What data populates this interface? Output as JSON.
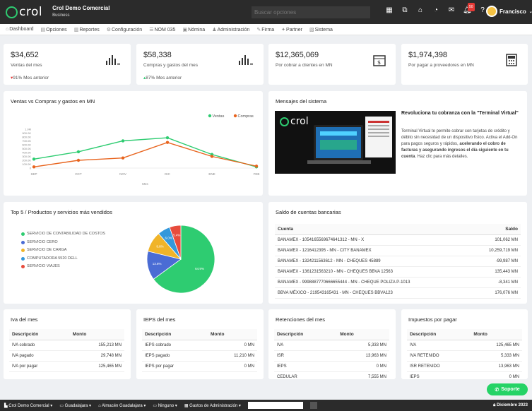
{
  "header": {
    "logo_text": "crol",
    "company_name": "Crol Demo Comercial",
    "company_plan": "Business",
    "search_placeholder": "Buscar opciones",
    "notifications_badge": "50",
    "user_name": "Francisco"
  },
  "menu": [
    {
      "icon": "home-icon",
      "label": "Dashboard"
    },
    {
      "icon": "options-icon",
      "label": "Opciones"
    },
    {
      "icon": "reports-icon",
      "label": "Reportes"
    },
    {
      "icon": "gear-icon",
      "label": "Configuración"
    },
    {
      "icon": "list-icon",
      "label": "NOM 035"
    },
    {
      "icon": "payroll-icon",
      "label": "Nómina"
    },
    {
      "icon": "admin-icon",
      "label": "Administración"
    },
    {
      "icon": "sign-icon",
      "label": "Firma"
    },
    {
      "icon": "partner-icon",
      "label": "Partner"
    },
    {
      "icon": "system-icon",
      "label": "Sistema"
    }
  ],
  "kpis": [
    {
      "value": "$34,652",
      "label": "Ventas del mes",
      "change": "91% Mes anterior",
      "direction": "down",
      "icon": "bar-chart-icon"
    },
    {
      "value": "$58,338",
      "label": "Compras y gastos del mes",
      "change": "87% Mes anterior",
      "direction": "up",
      "icon": "bar-chart-icon"
    },
    {
      "value": "$12,365,069",
      "label": "Por cobrar a clientes en MN",
      "change": "",
      "direction": "",
      "icon": "calendar-money-icon"
    },
    {
      "value": "$1,974,398",
      "label": "Por pagar a proveedores en MN",
      "change": "",
      "direction": "",
      "icon": "calculator-icon"
    }
  ],
  "line_chart_title": "Ventas vs Compras y gastos en MN",
  "chart_data": {
    "type": "line",
    "categories": [
      "SEP",
      "OCT",
      "NOV",
      "DIC",
      "ENE",
      "FEB"
    ],
    "xlabel": "Mes",
    "ylabel": "",
    "ylim": [
      0,
      1000000
    ],
    "yticks": [
      "1.0M",
      "900.0K",
      "800.0K",
      "700.0K",
      "600.0K",
      "500.0K",
      "400.0K",
      "300.0K",
      "200.0K",
      "100.0K",
      "0"
    ],
    "legend_position": "top-right",
    "series": [
      {
        "name": "Ventas",
        "color": "#2ecc71",
        "values": [
          230000,
          420000,
          700000,
          780000,
          350000,
          30000
        ]
      },
      {
        "name": "Compras",
        "color": "#e8641e",
        "values": [
          30000,
          200000,
          260000,
          660000,
          300000,
          50000
        ]
      }
    ]
  },
  "messages": {
    "title": "Mensajes del sistema",
    "headline": "Revoluciona tu cobranza con la \"Terminal Virtual\"",
    "body_plain": "Terminal Virtual te permite cobrar con tarjetas de crédito y débito sin necesidad de un dispositivo físico. Activa el Add-On para pagos seguros y rápidos, ",
    "body_bold": "acelerando el cobro de facturas y asegurando ingresos el día siguiente en tu cuenta",
    "body_end": ". Haz clic para más detalles."
  },
  "pie": {
    "title": "Top 5 / Productos y servicios más vendidos",
    "slices": [
      {
        "label": "SERVICIO DE CONTABILIDAD DE COSTOS",
        "value": 64.9,
        "text": "64.9%",
        "color": "#2ecc71"
      },
      {
        "label": "SERVICIO CERO",
        "value": 13.8,
        "text": "13.8%",
        "color": "#4a6cd4"
      },
      {
        "label": "SERVICIO DE CARGA",
        "value": 9.8,
        "text": "9.8%",
        "color": "#f0b429"
      },
      {
        "label": "COMPUTADORA 5520 DELL",
        "value": 6.0,
        "text": "6.0%",
        "color": "#3498db"
      },
      {
        "label": "SERVICIO VIAJES",
        "value": 5.4,
        "text": "5.4%",
        "color": "#e74c3c"
      }
    ]
  },
  "bank": {
    "title": "Saldo de cuentas bancarias",
    "col_account": "Cuenta",
    "col_balance": "Saldo",
    "rows": [
      {
        "account": "BANAMEX - 1054165569674641312 - MN - X",
        "balance": "101,062 MN"
      },
      {
        "account": "BANAMEX - 1216412395 - MN - CITY BANAMEX",
        "balance": "10,259,719 MN"
      },
      {
        "account": "BANAMEX - 1324211563612 - MN - CHEQUES 45889",
        "balance": "-99,987 MN"
      },
      {
        "account": "BANAMEX - 1361231563210 - MN - CHEQUES BBVA 12563",
        "balance": "135,443 MN"
      },
      {
        "account": "BANAMEX - 9998887770666655444 - MN - CHEQUE POLIZA P-1013",
        "balance": "-8,341 MN"
      },
      {
        "account": "BBVA MÉXICO - 219543165431 - MN - CHEQUES BBVA123",
        "balance": "176,076 MN"
      }
    ]
  },
  "tax_tables": [
    {
      "title": "Iva del mes",
      "col1": "Descripción",
      "col2": "Monto",
      "rows": [
        {
          "d": "IVA cobrado",
          "m": "155,213 MN"
        },
        {
          "d": "IVA pagado",
          "m": "29,748 MN"
        },
        {
          "d": "IVA por pagar",
          "m": "125,465 MN"
        }
      ]
    },
    {
      "title": "IEPS del mes",
      "col1": "Descripción",
      "col2": "Monto",
      "rows": [
        {
          "d": "IEPS cobrado",
          "m": "0 MN"
        },
        {
          "d": "IEPS pagado",
          "m": "11,210 MN"
        },
        {
          "d": "IEPS por pagar",
          "m": "0 MN"
        }
      ]
    },
    {
      "title": "Retenciones del mes",
      "col1": "Descripción",
      "col2": "Monto",
      "rows": [
        {
          "d": "IVA",
          "m": "5,333 MN"
        },
        {
          "d": "ISR",
          "m": "13,963 MN"
        },
        {
          "d": "IEPS",
          "m": "0 MN"
        },
        {
          "d": "CEDULAR",
          "m": "7,555 MN"
        }
      ]
    },
    {
      "title": "Impuestos por pagar",
      "col1": "Descripción",
      "col2": "Monto",
      "rows": [
        {
          "d": "IVA",
          "m": "125,465 MN"
        },
        {
          "d": "IVA RETENIDO",
          "m": "5,333 MN"
        },
        {
          "d": "ISR RETENIDO",
          "m": "13,963 MN"
        },
        {
          "d": "IEPS",
          "m": "0 MN"
        }
      ]
    }
  ],
  "bottombar": {
    "company": "Crol Demo Comercial",
    "location": "Guadalajara",
    "warehouse": "Almacén Guadalajara",
    "none": "Ninguno",
    "expenses": "Gastos de Administración",
    "date": "Diciembre 2023"
  },
  "support_label": "Soporte"
}
